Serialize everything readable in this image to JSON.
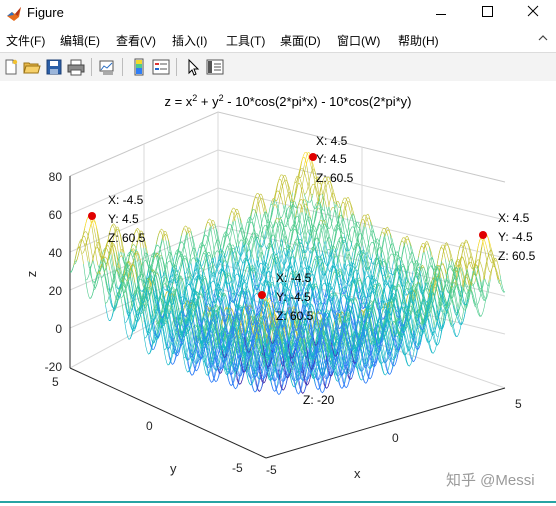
{
  "window": {
    "title": "Figure",
    "buttons": [
      "minimize",
      "maximize",
      "close"
    ]
  },
  "menu": {
    "items": [
      {
        "label": "文件(F)",
        "key": "F"
      },
      {
        "label": "编辑(E)",
        "key": "E"
      },
      {
        "label": "查看(V)",
        "key": "V"
      },
      {
        "label": "插入(I)",
        "key": "I"
      },
      {
        "label": "工具(T)",
        "key": "T"
      },
      {
        "label": "桌面(D)",
        "key": "D"
      },
      {
        "label": "窗口(W)",
        "key": "W"
      },
      {
        "label": "帮助(H)",
        "key": "H"
      }
    ]
  },
  "toolbar": {
    "icons": [
      "new-figure-icon",
      "open-file-icon",
      "save-icon",
      "print-icon",
      "link-figure-icon",
      "insert-colorbar-icon",
      "insert-legend-icon",
      "edit-plot-icon",
      "property-inspector-icon"
    ]
  },
  "plot": {
    "title_main": "z =  x",
    "title_sup1": "2",
    "title_mid": " + y",
    "title_sup2": "2",
    "title_rest": " - 10*cos(2*pi*x) - 10*cos(2*pi*y)",
    "z_axis_label": "z",
    "x_axis_label": "x",
    "y_axis_label": "y",
    "z_ticks": [
      "80",
      "60",
      "40",
      "20",
      "0",
      "-20"
    ],
    "x_ticks": [
      "-5",
      "0",
      "5"
    ],
    "y_ticks": [
      "5",
      "0",
      "-5"
    ],
    "bottom_note": "Z: -20",
    "colormap": [
      "#3e26a8",
      "#2f7ef7",
      "#17b8c8",
      "#4fcb8d",
      "#c3c236",
      "#f5d92b"
    ],
    "datatips": [
      {
        "x": "X: 4.5",
        "y": "Y: 4.5",
        "z": "Z: 60.5"
      },
      {
        "x": "X: -4.5",
        "y": "Y: 4.5",
        "z": "Z: 60.5"
      },
      {
        "x": "X: 4.5",
        "y": "Y: -4.5",
        "z": "Z: 60.5"
      },
      {
        "x": "X: -4.5",
        "y": "Y: -4.5",
        "z": "Z: 60.5"
      }
    ],
    "datatip_color": "#e00000"
  },
  "watermark": "知乎 @Messi",
  "chart_data": {
    "type": "surface-mesh",
    "equation": "z = x^2 + y^2 - 10*cos(2*pi*x) - 10*cos(2*pi*y)",
    "x_range": [
      -5,
      5
    ],
    "y_range": [
      -5,
      5
    ],
    "z_lim": [
      -20,
      80
    ],
    "peaks": [
      {
        "x": 4.5,
        "y": 4.5,
        "z": 60.5
      },
      {
        "x": -4.5,
        "y": 4.5,
        "z": 60.5
      },
      {
        "x": 4.5,
        "y": -4.5,
        "z": 60.5
      },
      {
        "x": -4.5,
        "y": -4.5,
        "z": 60.5
      }
    ],
    "grid": true
  }
}
